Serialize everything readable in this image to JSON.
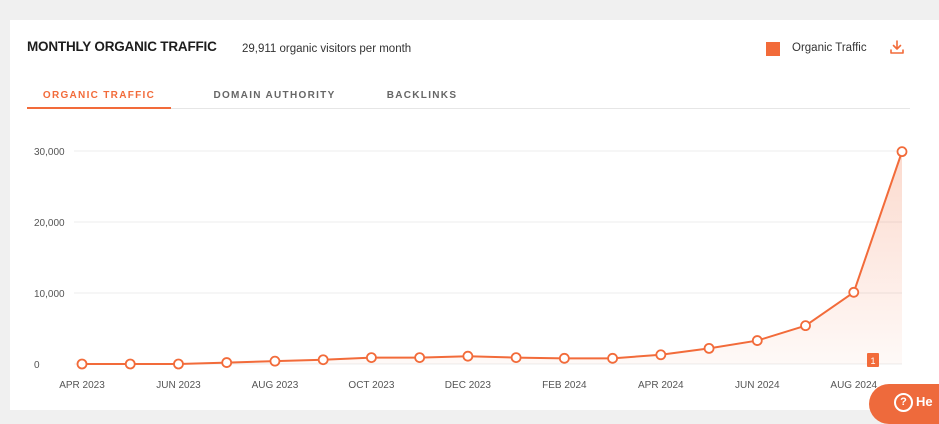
{
  "header": {
    "title": "MONTHLY ORGANIC TRAFFIC",
    "subtitle": "29,911 organic visitors per month",
    "legend_label": "Organic Traffic",
    "download_icon": "download-icon"
  },
  "tabs": [
    {
      "label": "ORGANIC TRAFFIC",
      "active": true
    },
    {
      "label": "DOMAIN AUTHORITY",
      "active": false
    },
    {
      "label": "BACKLINKS",
      "active": false
    }
  ],
  "colors": {
    "accent": "#f26b3a",
    "grid": "#ececec",
    "tick_text": "#555555",
    "page_bg": "#f0f0f0"
  },
  "chart_data": {
    "type": "area",
    "series": [
      {
        "name": "Organic Traffic",
        "values": [
          0,
          0,
          0,
          200,
          400,
          600,
          900,
          900,
          1100,
          900,
          800,
          800,
          1300,
          2200,
          3300,
          5400,
          10100,
          29911
        ]
      }
    ],
    "x_tick_labels": [
      "APR 2023",
      "JUN 2023",
      "AUG 2023",
      "OCT 2023",
      "DEC 2023",
      "FEB 2024",
      "APR 2024",
      "JUN 2024",
      "AUG 2024"
    ],
    "y_tick_labels": [
      "0",
      "10,000",
      "20,000",
      "30,000"
    ],
    "ylim": [
      0,
      30000
    ],
    "grid": true,
    "marker_badge": "1"
  },
  "help": {
    "label": "He",
    "icon": "question-icon"
  }
}
